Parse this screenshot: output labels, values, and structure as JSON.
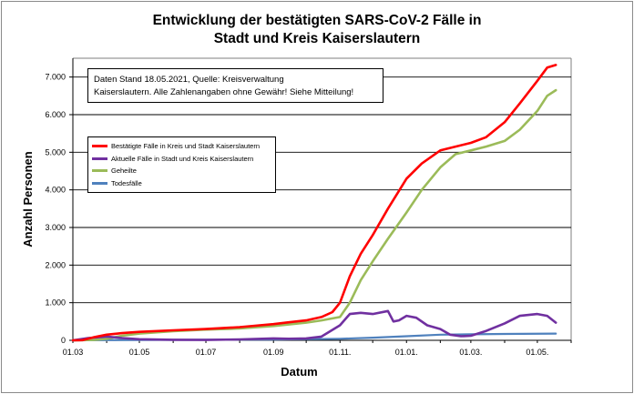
{
  "chart_data": {
    "type": "line",
    "title_lines": [
      "Entwicklung der bestätigten SARS-CoV-2 Fälle in",
      "Stadt und Kreis Kaiserslautern"
    ],
    "xlabel": "Datum",
    "ylabel": "Anzahl Personen",
    "ylim": [
      0,
      7500
    ],
    "yticks": [
      0,
      1000,
      2000,
      3000,
      4000,
      5000,
      6000,
      7000
    ],
    "ytick_labels": [
      "0",
      "1.000",
      "2.000",
      "3.000",
      "4.000",
      "5.000",
      "6.000",
      "7.000"
    ],
    "xlim": [
      "2020-03-01",
      "2021-06-01"
    ],
    "xticks": [
      "2020-03-01",
      "2020-05-01",
      "2020-07-01",
      "2020-09-01",
      "2020-11-01",
      "2021-01-01",
      "2021-03-01",
      "2021-05-01"
    ],
    "xtick_labels": [
      "01.03",
      "01.05",
      "01.07",
      "01.09",
      "01.11.",
      "01.01.",
      "01.03.",
      "01.05."
    ],
    "grid": "horizontal",
    "legend_position": "left",
    "annotation_lines": [
      "Daten Stand 18.05.2021, Quelle: Kreisverwaltung",
      "Kaiserslautern. Alle Zahlenangaben ohne Gewähr! Siehe Mitteilung!"
    ],
    "series": [
      {
        "name": "Bestätigte Fälle in Kreis und Stadt Kaiserslautern",
        "color": "#ff0000",
        "points": [
          [
            "2020-03-01",
            0
          ],
          [
            "2020-03-10",
            5
          ],
          [
            "2020-03-20",
            80
          ],
          [
            "2020-04-01",
            150
          ],
          [
            "2020-04-15",
            190
          ],
          [
            "2020-05-01",
            225
          ],
          [
            "2020-06-01",
            265
          ],
          [
            "2020-07-01",
            300
          ],
          [
            "2020-08-01",
            350
          ],
          [
            "2020-09-01",
            430
          ],
          [
            "2020-09-15",
            480
          ],
          [
            "2020-10-01",
            530
          ],
          [
            "2020-10-15",
            620
          ],
          [
            "2020-10-25",
            750
          ],
          [
            "2020-11-01",
            1000
          ],
          [
            "2020-11-10",
            1700
          ],
          [
            "2020-11-20",
            2300
          ],
          [
            "2020-12-01",
            2800
          ],
          [
            "2020-12-15",
            3500
          ],
          [
            "2021-01-01",
            4300
          ],
          [
            "2021-01-15",
            4700
          ],
          [
            "2021-02-01",
            5050
          ],
          [
            "2021-02-15",
            5150
          ],
          [
            "2021-03-01",
            5250
          ],
          [
            "2021-03-15",
            5400
          ],
          [
            "2021-04-01",
            5800
          ],
          [
            "2021-04-15",
            6300
          ],
          [
            "2021-05-01",
            6900
          ],
          [
            "2021-05-10",
            7250
          ],
          [
            "2021-05-18",
            7320
          ]
        ]
      },
      {
        "name": "Aktuelle Fälle in Stadt und Kreis Kaiserslautern",
        "color": "#7030a0",
        "points": [
          [
            "2020-03-01",
            0
          ],
          [
            "2020-03-15",
            60
          ],
          [
            "2020-04-01",
            100
          ],
          [
            "2020-04-15",
            60
          ],
          [
            "2020-05-01",
            30
          ],
          [
            "2020-06-01",
            15
          ],
          [
            "2020-07-01",
            10
          ],
          [
            "2020-08-01",
            25
          ],
          [
            "2020-09-01",
            50
          ],
          [
            "2020-09-15",
            40
          ],
          [
            "2020-10-01",
            50
          ],
          [
            "2020-10-15",
            100
          ],
          [
            "2020-11-01",
            400
          ],
          [
            "2020-11-10",
            700
          ],
          [
            "2020-11-20",
            730
          ],
          [
            "2020-12-01",
            700
          ],
          [
            "2020-12-15",
            780
          ],
          [
            "2020-12-20",
            500
          ],
          [
            "2020-12-25",
            530
          ],
          [
            "2021-01-01",
            650
          ],
          [
            "2021-01-10",
            600
          ],
          [
            "2021-01-20",
            400
          ],
          [
            "2021-02-01",
            300
          ],
          [
            "2021-02-10",
            150
          ],
          [
            "2021-02-20",
            110
          ],
          [
            "2021-03-01",
            120
          ],
          [
            "2021-03-15",
            250
          ],
          [
            "2021-04-01",
            450
          ],
          [
            "2021-04-15",
            650
          ],
          [
            "2021-05-01",
            700
          ],
          [
            "2021-05-10",
            650
          ],
          [
            "2021-05-18",
            470
          ]
        ]
      },
      {
        "name": "Geheilte",
        "color": "#9bbb59",
        "points": [
          [
            "2020-03-01",
            0
          ],
          [
            "2020-03-20",
            10
          ],
          [
            "2020-04-01",
            40
          ],
          [
            "2020-04-15",
            120
          ],
          [
            "2020-05-01",
            180
          ],
          [
            "2020-06-01",
            245
          ],
          [
            "2020-07-01",
            285
          ],
          [
            "2020-08-01",
            315
          ],
          [
            "2020-09-01",
            380
          ],
          [
            "2020-10-01",
            470
          ],
          [
            "2020-10-15",
            530
          ],
          [
            "2020-11-01",
            620
          ],
          [
            "2020-11-10",
            1000
          ],
          [
            "2020-11-20",
            1600
          ],
          [
            "2020-12-01",
            2100
          ],
          [
            "2020-12-15",
            2700
          ],
          [
            "2021-01-01",
            3400
          ],
          [
            "2021-01-15",
            4000
          ],
          [
            "2021-02-01",
            4600
          ],
          [
            "2021-02-15",
            4950
          ],
          [
            "2021-03-01",
            5050
          ],
          [
            "2021-03-15",
            5150
          ],
          [
            "2021-04-01",
            5300
          ],
          [
            "2021-04-15",
            5600
          ],
          [
            "2021-05-01",
            6100
          ],
          [
            "2021-05-10",
            6500
          ],
          [
            "2021-05-18",
            6650
          ]
        ]
      },
      {
        "name": "Todesfälle",
        "color": "#4f81bd",
        "points": [
          [
            "2020-03-01",
            0
          ],
          [
            "2020-04-01",
            5
          ],
          [
            "2020-05-01",
            10
          ],
          [
            "2020-07-01",
            15
          ],
          [
            "2020-09-01",
            20
          ],
          [
            "2020-11-01",
            40
          ],
          [
            "2020-12-01",
            70
          ],
          [
            "2021-01-01",
            110
          ],
          [
            "2021-02-01",
            150
          ],
          [
            "2021-03-01",
            160
          ],
          [
            "2021-04-01",
            170
          ],
          [
            "2021-05-18",
            180
          ]
        ]
      }
    ]
  }
}
